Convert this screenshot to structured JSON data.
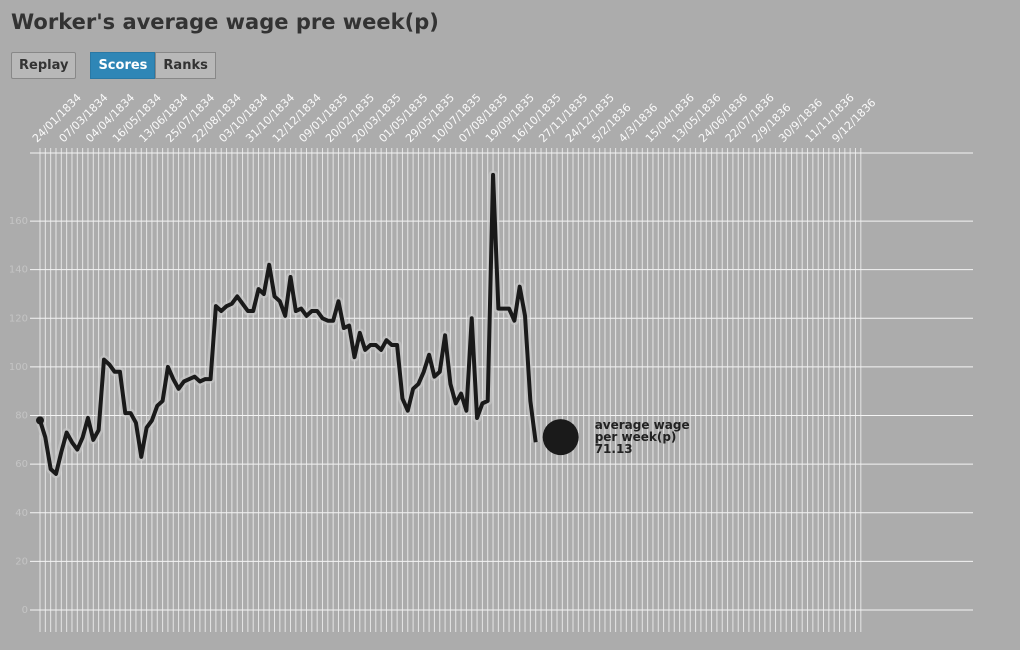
{
  "chart_data": {
    "type": "line",
    "title": "Worker's average wage pre week(p)",
    "buttons": [
      {
        "label": "Replay",
        "active": false
      },
      {
        "label": "Scores",
        "active": true
      },
      {
        "label": "Ranks",
        "active": false
      }
    ],
    "categories": [
      "24/01/1834",
      null,
      null,
      null,
      null,
      "07/03/1834",
      null,
      null,
      null,
      null,
      "04/04/1834",
      null,
      null,
      null,
      null,
      "16/05/1834",
      null,
      null,
      null,
      null,
      "13/06/1834",
      null,
      null,
      null,
      null,
      "25/07/1834",
      null,
      null,
      null,
      null,
      "22/08/1834",
      null,
      null,
      null,
      null,
      "03/10/1834",
      null,
      null,
      null,
      null,
      "31/10/1834",
      null,
      null,
      null,
      null,
      "12/12/1834",
      null,
      null,
      null,
      null,
      "09/01/1835",
      null,
      null,
      null,
      null,
      "20/02/1835",
      null,
      null,
      null,
      null,
      "20/03/1835",
      null,
      null,
      null,
      null,
      "01/05/1835",
      null,
      null,
      null,
      null,
      "29/05/1835",
      null,
      null,
      null,
      null,
      "10/07/1835",
      null,
      null,
      null,
      null,
      "07/08/1835",
      null,
      null,
      null,
      null,
      "19/09/1835",
      null,
      null,
      null,
      null,
      "16/10/1835",
      null,
      null,
      null,
      null,
      "27/11/1835",
      null,
      null,
      null,
      null,
      "24/12/1835",
      null,
      null,
      null,
      null,
      "5/2/1836",
      null,
      null,
      null,
      null,
      "4/3/1836",
      null,
      null,
      null,
      null,
      "15/04/1836",
      null,
      null,
      null,
      null,
      "13/05/1836",
      null,
      null,
      null,
      null,
      "24/06/1836",
      null,
      null,
      null,
      null,
      "22/07/1836",
      null,
      null,
      null,
      null,
      "2/9/1836",
      null,
      null,
      null,
      null,
      "30/9/1836",
      null,
      null,
      null,
      null,
      "11/11/1836",
      null,
      null,
      null,
      null,
      "9/12/1836",
      null,
      null,
      null,
      null
    ],
    "series": [
      {
        "name": "average wage per week(p)",
        "color": "#1a1a1a",
        "values": [
          78,
          71,
          58,
          56,
          65,
          73,
          69,
          66,
          71,
          79,
          70,
          74,
          103,
          101,
          98,
          98,
          81,
          81,
          77,
          63,
          75,
          78,
          84,
          86,
          100,
          95,
          91,
          94,
          95,
          96,
          94,
          95,
          95,
          125,
          123,
          125,
          126,
          129,
          126,
          123,
          123,
          132,
          130,
          142,
          129,
          127,
          121,
          137,
          123,
          124,
          121,
          123,
          123,
          120,
          119,
          119,
          127,
          116,
          117,
          104,
          114,
          107,
          109,
          109,
          107,
          111,
          109,
          109,
          87,
          82,
          91,
          93,
          98,
          105,
          96,
          98,
          113,
          93,
          85,
          89,
          82,
          120,
          79,
          85,
          86,
          179,
          124,
          124,
          124,
          119,
          133,
          121,
          86,
          69,
          null,
          null,
          null,
          null,
          null,
          null,
          null,
          null,
          null,
          null,
          null,
          null,
          null,
          null,
          null,
          null,
          null,
          null,
          null,
          null,
          null,
          null,
          null,
          null,
          null,
          null,
          null,
          null,
          null,
          null,
          null,
          null,
          null,
          null,
          null,
          null,
          null,
          null,
          null,
          null,
          null,
          null,
          null,
          null,
          null,
          null,
          null,
          null,
          null,
          null,
          null,
          null,
          null,
          null,
          null,
          null,
          null,
          null,
          null,
          null,
          null
        ]
      }
    ],
    "current": {
      "label": "average wage per week(p)",
      "value": 71.13
    },
    "ylim": [
      0,
      188
    ],
    "yticks": [
      0,
      20,
      40,
      60,
      80,
      100,
      120,
      140,
      160
    ],
    "grid": true
  }
}
